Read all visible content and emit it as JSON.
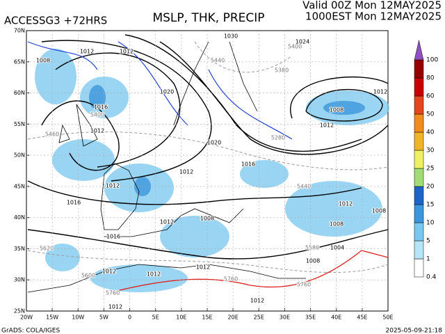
{
  "header": {
    "model": "ACCESSG3 +72HRS",
    "title": "MSLP, THK, PRECIP",
    "valid": "Valid 00Z Mon 12MAY2025",
    "local": "1000EST Mon 12MAY2025"
  },
  "footer": {
    "credit": "GrADS: COLA/IGES",
    "timestamp": "2025-05-09-21:18"
  },
  "map": {
    "lat_labels": [
      "70N",
      "65N",
      "60N",
      "55N",
      "50N",
      "45N",
      "40N",
      "35N",
      "30N",
      "25N"
    ],
    "lon_labels": [
      "20W",
      "15W",
      "10W",
      "5W",
      "0",
      "5E",
      "10E",
      "15E",
      "20E",
      "25E",
      "30E",
      "35E",
      "40E",
      "45E",
      "50E"
    ],
    "isobar_labels": [
      "1012",
      "1012",
      "1008",
      "1020",
      "1016",
      "1012",
      "1020",
      "1016",
      "1012",
      "1012",
      "1016",
      "1012",
      "1008",
      "1016",
      "1012",
      "1012",
      "1012",
      "1012",
      "1012",
      "1008",
      "1012",
      "1012",
      "1024",
      "1030",
      "1008",
      "1012",
      "1008",
      "1008",
      "1004"
    ],
    "thickness_labels": [
      "5400",
      "5440",
      "5380",
      "5280",
      "5440",
      "5620",
      "5600",
      "5760",
      "5760",
      "5760",
      "5580",
      "5400",
      "5460"
    ]
  },
  "colorbar": {
    "levels": [
      0.4,
      1,
      5,
      10,
      15,
      20,
      25,
      30,
      40,
      50,
      60,
      80,
      100
    ],
    "colors": [
      "#ffffff",
      "#b4e6f8",
      "#78c8f0",
      "#3c96dc",
      "#1e64c8",
      "#a0dc78",
      "#f0f064",
      "#f0b428",
      "#f08c1e",
      "#e6461e",
      "#c80000",
      "#960000"
    ],
    "over_color": "#9050c0"
  }
}
